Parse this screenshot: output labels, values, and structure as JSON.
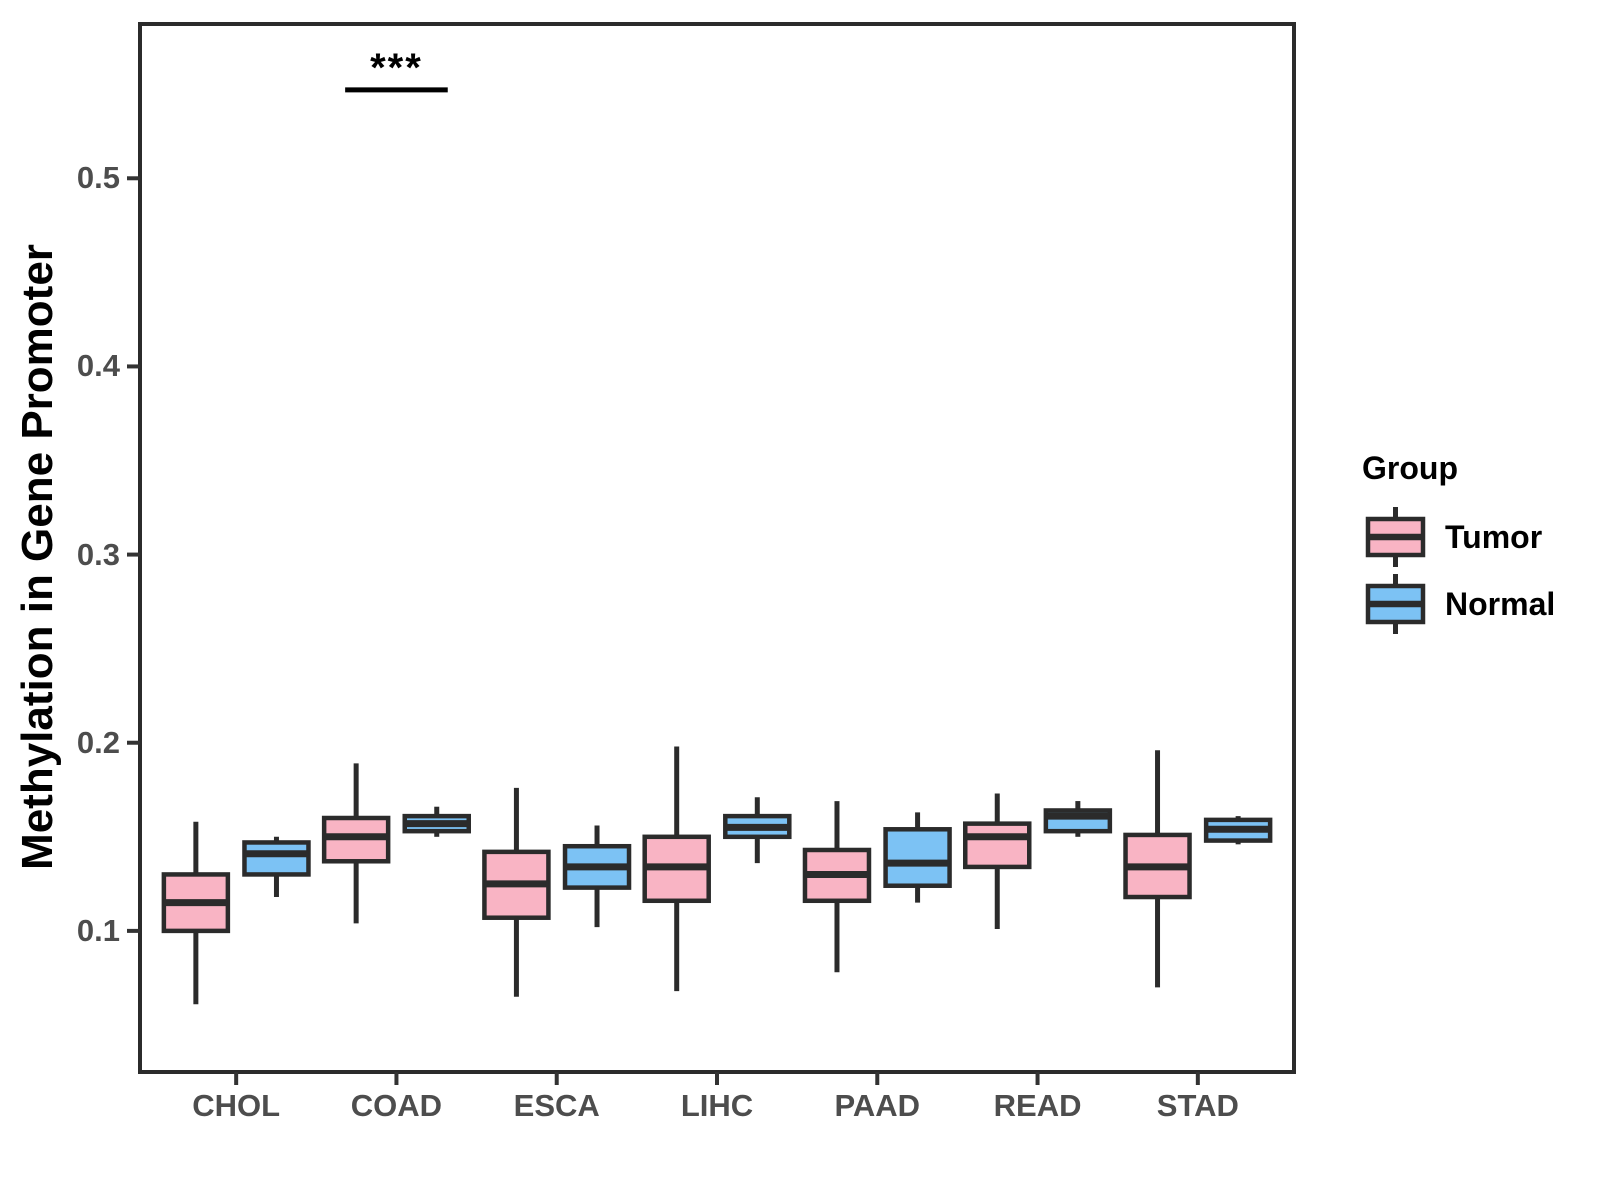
{
  "chart_data": {
    "type": "boxplot",
    "title": "",
    "xlabel": "",
    "ylabel": "Methylation in Gene Promoter",
    "grid": "off",
    "legend": {
      "title": "Group",
      "position": "right",
      "entries": [
        {
          "label": "Tumor",
          "color": "#F9B4C4"
        },
        {
          "label": "Normal",
          "color": "#7CC2F4"
        }
      ]
    },
    "categories": [
      "CHOL",
      "COAD",
      "ESCA",
      "LIHC",
      "PAAD",
      "READ",
      "STAD"
    ],
    "y_ticks": [
      "0.1",
      "0.2",
      "0.3",
      "0.4",
      "0.5"
    ],
    "ylim": [
      0.025,
      0.582
    ],
    "significance": {
      "category": "COAD",
      "label": "***",
      "bar_y": 0.547
    },
    "series": [
      {
        "name": "Tumor",
        "color": "#F9B4C4",
        "boxes": [
          {
            "category": "CHOL",
            "whisker_low": 0.061,
            "q1": 0.1,
            "median": 0.115,
            "q3": 0.13,
            "whisker_high": 0.158
          },
          {
            "category": "COAD",
            "whisker_low": 0.104,
            "q1": 0.137,
            "median": 0.15,
            "q3": 0.16,
            "whisker_high": 0.189
          },
          {
            "category": "ESCA",
            "whisker_low": 0.065,
            "q1": 0.107,
            "median": 0.125,
            "q3": 0.142,
            "whisker_high": 0.176
          },
          {
            "category": "LIHC",
            "whisker_low": 0.068,
            "q1": 0.116,
            "median": 0.134,
            "q3": 0.15,
            "whisker_high": 0.198
          },
          {
            "category": "PAAD",
            "whisker_low": 0.078,
            "q1": 0.116,
            "median": 0.13,
            "q3": 0.143,
            "whisker_high": 0.169
          },
          {
            "category": "READ",
            "whisker_low": 0.101,
            "q1": 0.134,
            "median": 0.15,
            "q3": 0.157,
            "whisker_high": 0.173
          },
          {
            "category": "STAD",
            "whisker_low": 0.07,
            "q1": 0.118,
            "median": 0.134,
            "q3": 0.151,
            "whisker_high": 0.196
          }
        ]
      },
      {
        "name": "Normal",
        "color": "#7CC2F4",
        "boxes": [
          {
            "category": "CHOL",
            "whisker_low": 0.118,
            "q1": 0.13,
            "median": 0.141,
            "q3": 0.147,
            "whisker_high": 0.15
          },
          {
            "category": "COAD",
            "whisker_low": 0.15,
            "q1": 0.153,
            "median": 0.157,
            "q3": 0.161,
            "whisker_high": 0.166
          },
          {
            "category": "ESCA",
            "whisker_low": 0.102,
            "q1": 0.123,
            "median": 0.134,
            "q3": 0.145,
            "whisker_high": 0.156
          },
          {
            "category": "LIHC",
            "whisker_low": 0.136,
            "q1": 0.15,
            "median": 0.155,
            "q3": 0.161,
            "whisker_high": 0.171
          },
          {
            "category": "PAAD",
            "whisker_low": 0.115,
            "q1": 0.124,
            "median": 0.136,
            "q3": 0.154,
            "whisker_high": 0.163
          },
          {
            "category": "READ",
            "whisker_low": 0.15,
            "q1": 0.153,
            "median": 0.161,
            "q3": 0.164,
            "whisker_high": 0.169
          },
          {
            "category": "STAD",
            "whisker_low": 0.146,
            "q1": 0.148,
            "median": 0.154,
            "q3": 0.159,
            "whisker_high": 0.161
          }
        ]
      }
    ],
    "colors": {
      "box_outline": "#2B2B2B",
      "panel_border": "#2B2B2B",
      "tick_mark": "#333333",
      "tick_text": "#4D4D4D",
      "significance_bar": "#000000"
    }
  }
}
